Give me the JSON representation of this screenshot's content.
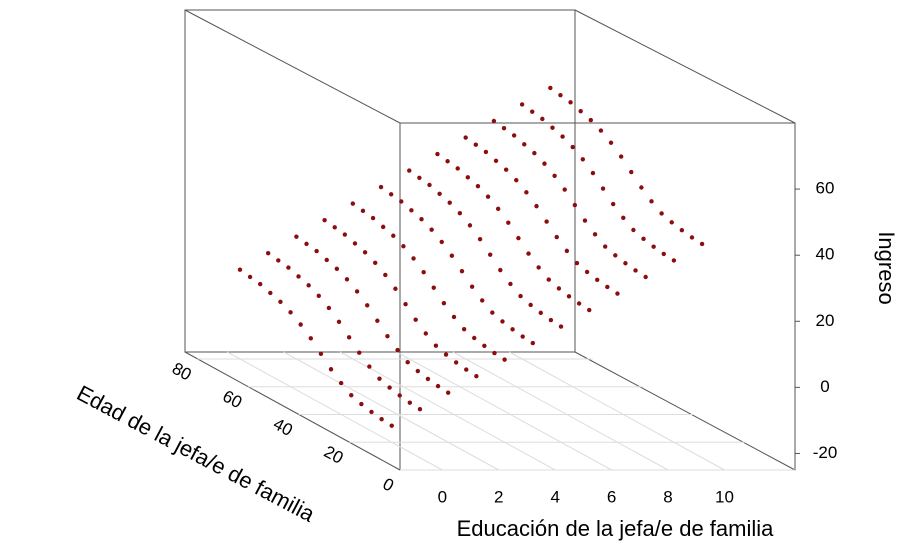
{
  "chart_data": {
    "type": "scatter3d",
    "xlabel": "Educación de la jefa/e de familia",
    "ylabel": "Edad de la jefa/e de familia",
    "zlabel": "Ingreso",
    "xlim": [
      -1.5,
      12.5
    ],
    "ylim": [
      0,
      85
    ],
    "zlim": [
      -25,
      80
    ],
    "xticks": [
      0,
      2,
      4,
      6,
      8,
      10
    ],
    "yticks": [
      0,
      20,
      40,
      60,
      80
    ],
    "zticks": [
      -20,
      0,
      20,
      40,
      60
    ],
    "color": "#8b0d0d",
    "x": [
      0,
      1,
      2,
      3,
      4,
      5,
      6,
      7,
      8,
      9,
      10,
      11
    ],
    "ages": [
      80,
      76,
      72,
      68,
      64,
      60,
      56,
      52,
      48,
      44,
      40,
      36,
      32,
      28,
      24,
      20
    ],
    "values": [
      [
        2,
        1.5,
        1,
        0,
        -1,
        -2.5,
        -4.5,
        -7,
        -10,
        -13,
        -15.5,
        -17.5,
        -18.5,
        -19.2,
        -19.7,
        -20
      ],
      [
        7,
        6.5,
        6,
        5,
        4,
        2.5,
        0.5,
        -2,
        -5,
        -8,
        -10.5,
        -12.5,
        -13.5,
        -14.2,
        -14.7,
        -15
      ],
      [
        12,
        11.5,
        11,
        10,
        9,
        7.5,
        5.5,
        3,
        0,
        -3,
        -5.5,
        -7.5,
        -8.5,
        -9.2,
        -9.7,
        -10
      ],
      [
        17,
        16.5,
        16,
        15,
        14,
        12.5,
        10.5,
        8,
        5,
        2,
        -0.5,
        -2.5,
        -3.5,
        -4.2,
        -4.7,
        -5
      ],
      [
        22,
        21.5,
        21,
        20,
        19,
        17.5,
        15.5,
        13,
        10,
        7,
        4.5,
        2.5,
        1.5,
        0.8,
        0.3,
        0
      ],
      [
        27,
        26.5,
        26,
        25,
        24,
        22.5,
        20.5,
        18,
        15,
        12,
        9.5,
        7.5,
        6.5,
        5.8,
        5.3,
        5
      ],
      [
        32,
        31.5,
        31,
        30,
        29,
        27.5,
        25.5,
        23,
        20,
        17,
        14.5,
        12.5,
        11.5,
        10.8,
        10.3,
        10
      ],
      [
        37,
        36.5,
        36,
        35,
        34,
        32.5,
        30.5,
        28,
        25,
        22,
        19.5,
        17.5,
        16.5,
        15.8,
        15.3,
        15
      ],
      [
        42,
        41.5,
        41,
        40,
        39,
        37.5,
        35.5,
        33,
        30,
        27,
        24.5,
        22.5,
        21.5,
        20.8,
        20.3,
        20
      ],
      [
        47,
        46.5,
        46,
        45,
        44,
        42.5,
        40.5,
        38,
        35,
        32,
        29.5,
        27.5,
        26.5,
        25.8,
        25.3,
        25
      ],
      [
        52,
        51.5,
        51,
        50,
        49,
        47.5,
        45.5,
        43,
        40,
        37,
        34.5,
        32.5,
        31.5,
        30.8,
        30.3,
        30
      ],
      [
        57,
        56.5,
        56,
        55,
        54,
        52.5,
        50.5,
        48,
        45,
        42,
        39.5,
        37.5,
        36.5,
        35.8,
        35.3,
        35
      ]
    ]
  }
}
